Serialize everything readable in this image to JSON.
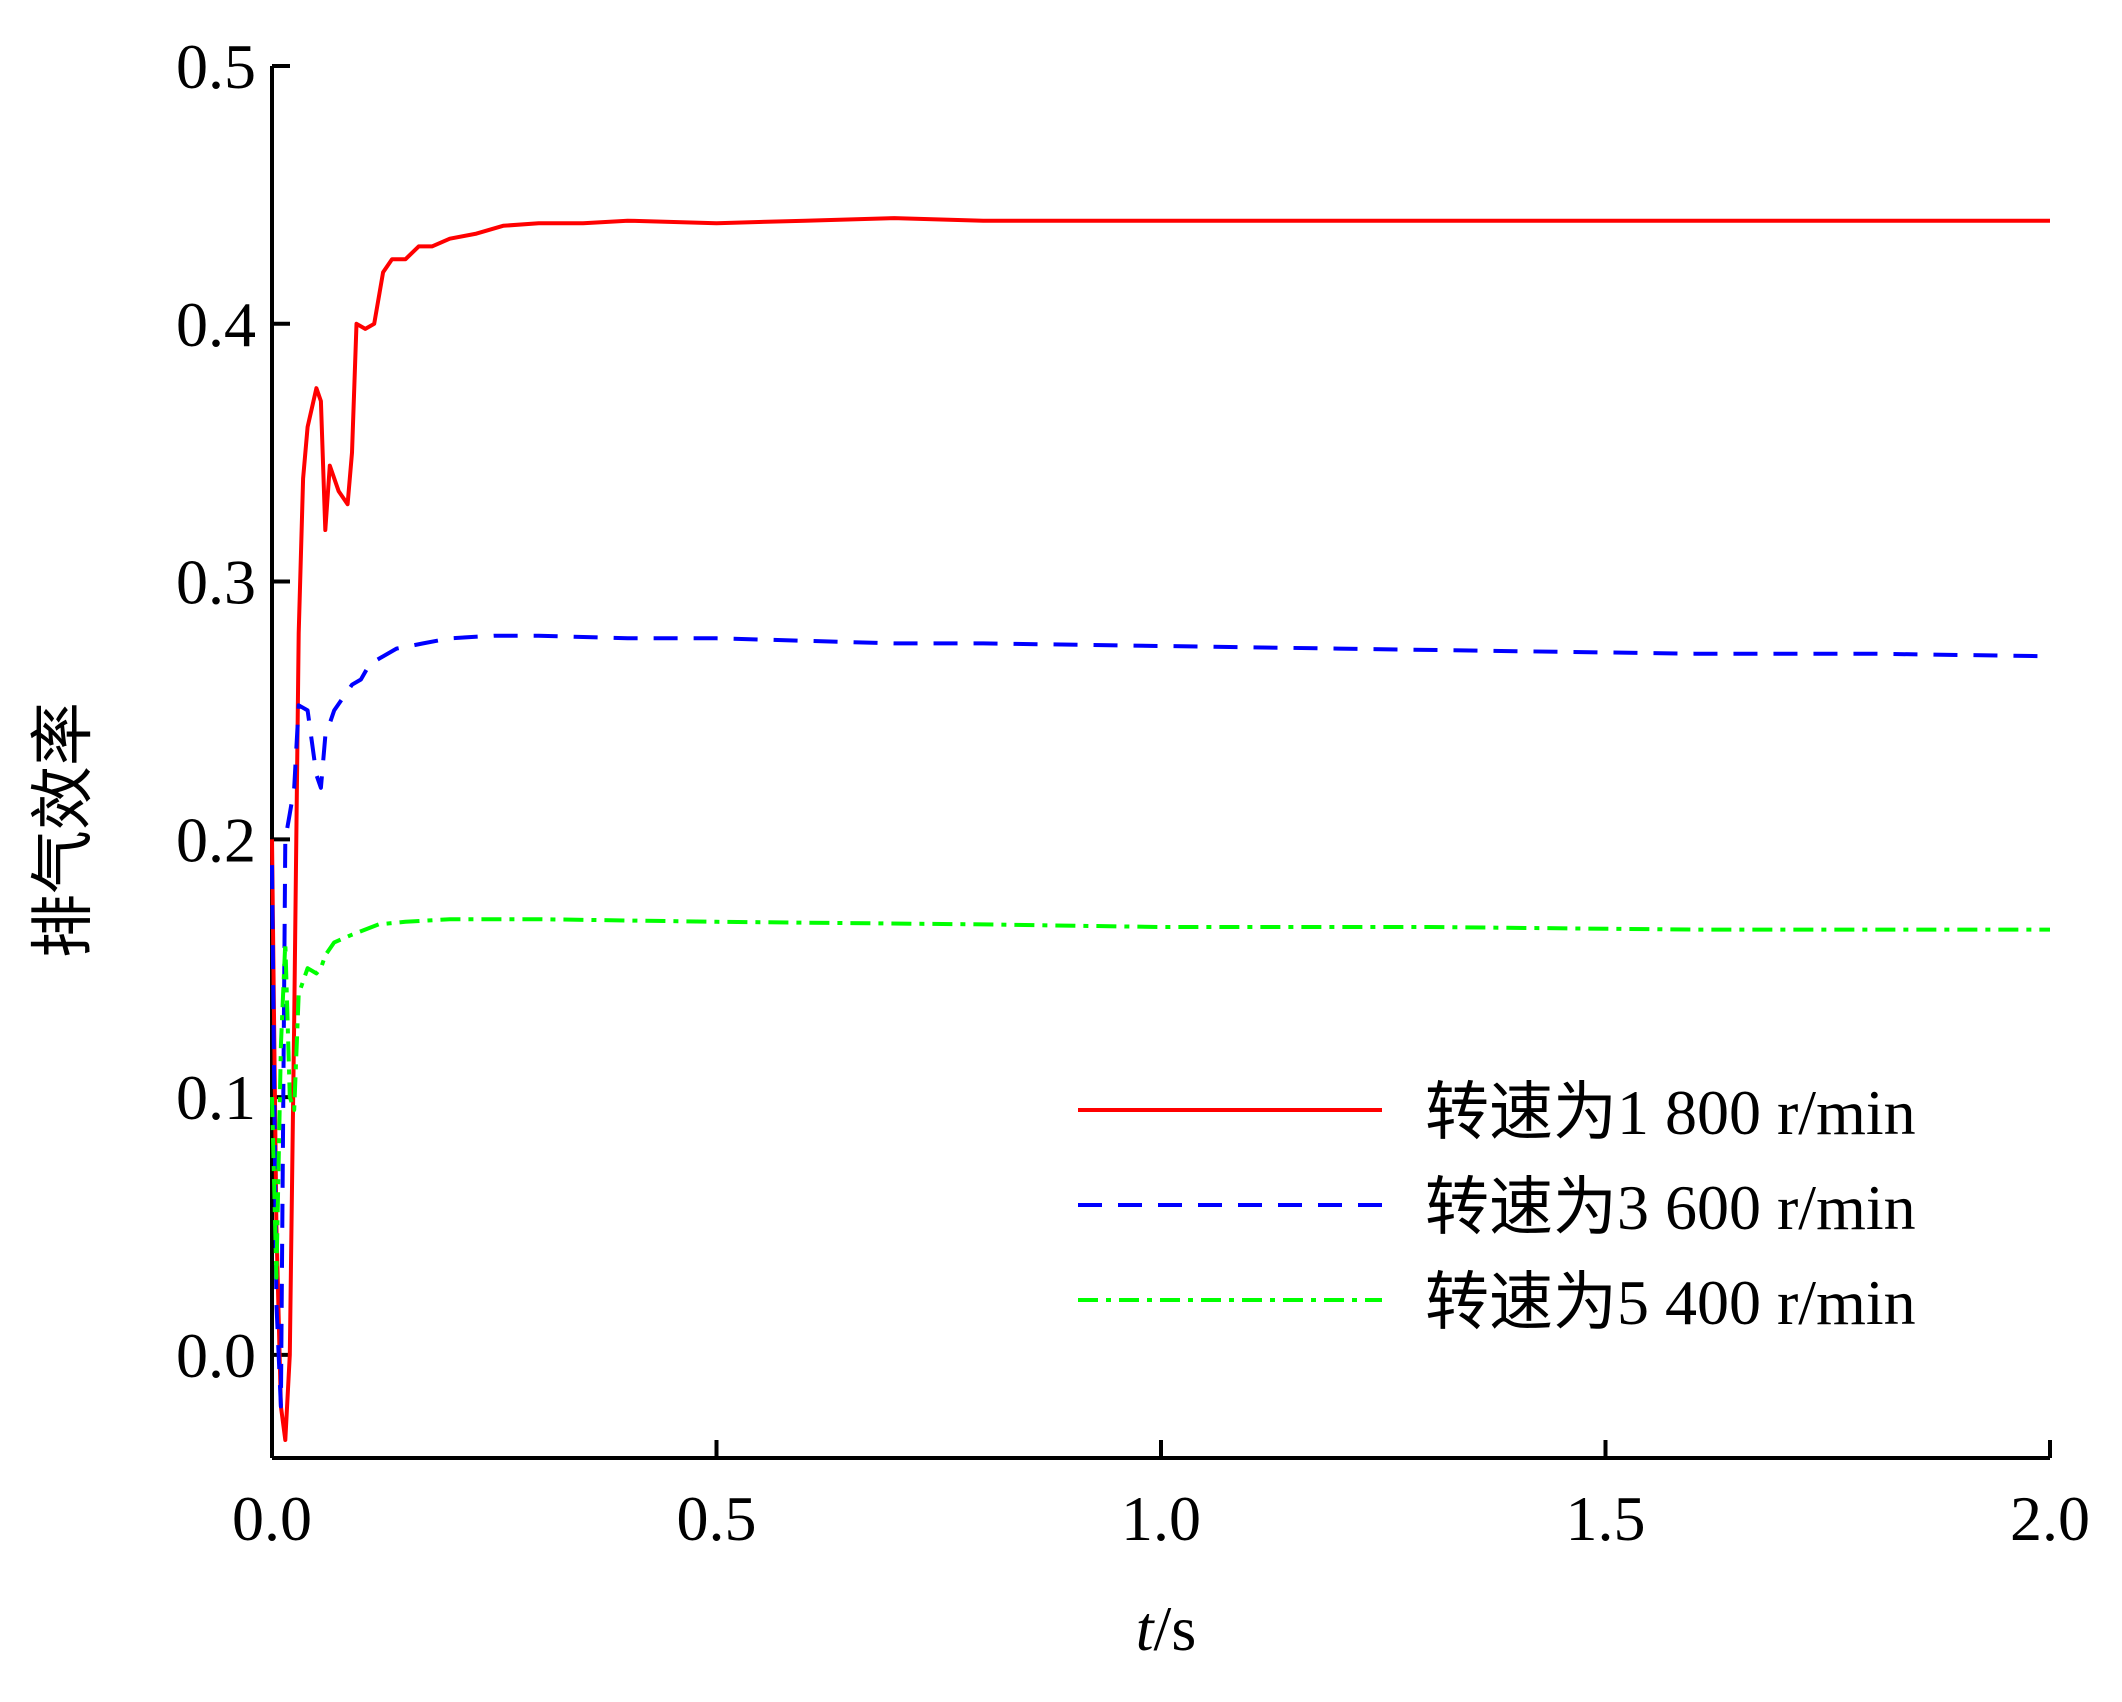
{
  "chart_data": {
    "type": "line",
    "xlabel_italic": "t",
    "xlabel_rest": "/s",
    "ylabel": "排气效率",
    "xlim": [
      0.0,
      2.0
    ],
    "ylim": [
      -0.04,
      0.5
    ],
    "xticks": [
      "0.0",
      "0.5",
      "1.0",
      "1.5",
      "2.0"
    ],
    "yticks": [
      "0.0",
      "0.1",
      "0.2",
      "0.3",
      "0.4",
      "0.5"
    ],
    "grid": false,
    "legend_position": "bottom-right",
    "series": [
      {
        "name": "转速为1 800 r/min",
        "color": "#ff0000",
        "dash": "solid",
        "points": [
          [
            0.0,
            0.2
          ],
          [
            0.005,
            0.05
          ],
          [
            0.01,
            -0.02
          ],
          [
            0.015,
            -0.033
          ],
          [
            0.02,
            0.0
          ],
          [
            0.025,
            0.13
          ],
          [
            0.03,
            0.28
          ],
          [
            0.035,
            0.34
          ],
          [
            0.04,
            0.36
          ],
          [
            0.05,
            0.375
          ],
          [
            0.055,
            0.37
          ],
          [
            0.06,
            0.32
          ],
          [
            0.065,
            0.345
          ],
          [
            0.075,
            0.335
          ],
          [
            0.085,
            0.33
          ],
          [
            0.09,
            0.35
          ],
          [
            0.095,
            0.4
          ],
          [
            0.105,
            0.398
          ],
          [
            0.115,
            0.4
          ],
          [
            0.125,
            0.42
          ],
          [
            0.135,
            0.425
          ],
          [
            0.15,
            0.425
          ],
          [
            0.165,
            0.43
          ],
          [
            0.18,
            0.43
          ],
          [
            0.2,
            0.433
          ],
          [
            0.23,
            0.435
          ],
          [
            0.26,
            0.438
          ],
          [
            0.3,
            0.439
          ],
          [
            0.35,
            0.439
          ],
          [
            0.4,
            0.44
          ],
          [
            0.5,
            0.439
          ],
          [
            0.6,
            0.44
          ],
          [
            0.7,
            0.441
          ],
          [
            0.8,
            0.44
          ],
          [
            0.9,
            0.44
          ],
          [
            1.0,
            0.44
          ],
          [
            1.2,
            0.44
          ],
          [
            1.4,
            0.44
          ],
          [
            1.6,
            0.44
          ],
          [
            1.8,
            0.44
          ],
          [
            2.0,
            0.44
          ]
        ]
      },
      {
        "name": "转速为3 600 r/min",
        "color": "#0000ff",
        "dash": "24 16",
        "points": [
          [
            0.0,
            0.19
          ],
          [
            0.005,
            0.02
          ],
          [
            0.01,
            -0.02
          ],
          [
            0.015,
            0.2
          ],
          [
            0.02,
            0.21
          ],
          [
            0.025,
            0.22
          ],
          [
            0.03,
            0.252
          ],
          [
            0.04,
            0.25
          ],
          [
            0.05,
            0.225
          ],
          [
            0.055,
            0.22
          ],
          [
            0.06,
            0.24
          ],
          [
            0.07,
            0.25
          ],
          [
            0.08,
            0.255
          ],
          [
            0.09,
            0.26
          ],
          [
            0.1,
            0.262
          ],
          [
            0.11,
            0.268
          ],
          [
            0.12,
            0.27
          ],
          [
            0.14,
            0.274
          ],
          [
            0.17,
            0.276
          ],
          [
            0.2,
            0.278
          ],
          [
            0.25,
            0.279
          ],
          [
            0.3,
            0.279
          ],
          [
            0.4,
            0.278
          ],
          [
            0.5,
            0.278
          ],
          [
            0.6,
            0.277
          ],
          [
            0.7,
            0.276
          ],
          [
            0.8,
            0.276
          ],
          [
            1.0,
            0.275
          ],
          [
            1.2,
            0.274
          ],
          [
            1.4,
            0.273
          ],
          [
            1.6,
            0.272
          ],
          [
            1.8,
            0.272
          ],
          [
            2.0,
            0.271
          ]
        ]
      },
      {
        "name": "转速为5 400 r/min",
        "color": "#00ff00",
        "dash": "20 8 5 8",
        "points": [
          [
            0.0,
            0.1
          ],
          [
            0.005,
            0.03
          ],
          [
            0.01,
            0.12
          ],
          [
            0.015,
            0.16
          ],
          [
            0.02,
            0.1
          ],
          [
            0.025,
            0.095
          ],
          [
            0.03,
            0.14
          ],
          [
            0.04,
            0.15
          ],
          [
            0.05,
            0.148
          ],
          [
            0.055,
            0.15
          ],
          [
            0.06,
            0.155
          ],
          [
            0.07,
            0.16
          ],
          [
            0.09,
            0.163
          ],
          [
            0.12,
            0.167
          ],
          [
            0.15,
            0.168
          ],
          [
            0.2,
            0.169
          ],
          [
            0.3,
            0.169
          ],
          [
            0.5,
            0.168
          ],
          [
            0.8,
            0.167
          ],
          [
            1.0,
            0.166
          ],
          [
            1.3,
            0.166
          ],
          [
            1.6,
            0.165
          ],
          [
            2.0,
            0.165
          ]
        ]
      }
    ]
  }
}
